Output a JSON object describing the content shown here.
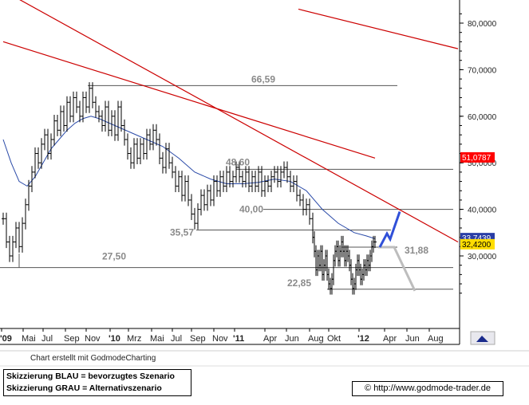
{
  "chart_data": {
    "type": "candlestick",
    "price_axis_labels": [
      "80,0000",
      "70,0000",
      "60,0000",
      "50,0000",
      "40,0000",
      "30,0000"
    ],
    "time_axis_labels": [
      "'09",
      "Mai",
      "Jul",
      "Sep",
      "Nov",
      "'10",
      "Mrz",
      "Mai",
      "Jul",
      "Sep",
      "Nov",
      "'11",
      "Apr",
      "Jun",
      "Aug",
      "Okt",
      "'12",
      "Apr",
      "Jun",
      "Aug"
    ],
    "price_badges": [
      {
        "label": "51,0787",
        "color": "#ff0000",
        "text_color": "#ffffff"
      },
      {
        "label": "33,7439",
        "color": "#2a3ea6",
        "text_color": "#ffffff"
      },
      {
        "label": "32,4200",
        "color": "#ffdd00",
        "text_color": "#000000"
      }
    ],
    "levels": [
      {
        "value": 66.59,
        "label": "66,59"
      },
      {
        "value": 48.6,
        "label": "48,60"
      },
      {
        "value": 40.0,
        "label": "40,00"
      },
      {
        "value": 35.57,
        "label": "35,57"
      },
      {
        "value": 31.88,
        "label": "31,88"
      },
      {
        "value": 27.5,
        "label": "27,50"
      },
      {
        "value": 22.85,
        "label": "22,85"
      }
    ],
    "price_path": [
      [
        0,
        38
      ],
      [
        4,
        33
      ],
      [
        8,
        30
      ],
      [
        12,
        33
      ],
      [
        16,
        36
      ],
      [
        20,
        32
      ],
      [
        24,
        37
      ],
      [
        28,
        41
      ],
      [
        32,
        45
      ],
      [
        36,
        48
      ],
      [
        40,
        52
      ],
      [
        44,
        50
      ],
      [
        48,
        54
      ],
      [
        52,
        56
      ],
      [
        56,
        52
      ],
      [
        60,
        55
      ],
      [
        64,
        59
      ],
      [
        68,
        57
      ],
      [
        72,
        61
      ],
      [
        76,
        58
      ],
      [
        80,
        63
      ],
      [
        84,
        60
      ],
      [
        88,
        64
      ],
      [
        92,
        62
      ],
      [
        96,
        60
      ],
      [
        100,
        64
      ],
      [
        104,
        62
      ],
      [
        108,
        66
      ],
      [
        112,
        63
      ],
      [
        116,
        61
      ],
      [
        120,
        60
      ],
      [
        124,
        58
      ],
      [
        128,
        62
      ],
      [
        132,
        57
      ],
      [
        136,
        60
      ],
      [
        140,
        56
      ],
      [
        144,
        62
      ],
      [
        148,
        58
      ],
      [
        152,
        55
      ],
      [
        156,
        52
      ],
      [
        160,
        50
      ],
      [
        164,
        54
      ],
      [
        168,
        51
      ],
      [
        172,
        54
      ],
      [
        176,
        52
      ],
      [
        180,
        56
      ],
      [
        184,
        54
      ],
      [
        188,
        57
      ],
      [
        192,
        55
      ],
      [
        196,
        51
      ],
      [
        200,
        49
      ],
      [
        204,
        53
      ],
      [
        208,
        50
      ],
      [
        212,
        48
      ],
      [
        216,
        45
      ],
      [
        220,
        47
      ],
      [
        224,
        43
      ],
      [
        228,
        46
      ],
      [
        232,
        42
      ],
      [
        236,
        39
      ],
      [
        240,
        37
      ],
      [
        244,
        40
      ],
      [
        248,
        43
      ],
      [
        252,
        41
      ],
      [
        256,
        44
      ],
      [
        260,
        42
      ],
      [
        264,
        46
      ],
      [
        268,
        44
      ],
      [
        272,
        47
      ],
      [
        276,
        45
      ],
      [
        280,
        48
      ],
      [
        284,
        46
      ],
      [
        288,
        47
      ],
      [
        292,
        49
      ],
      [
        296,
        47
      ],
      [
        300,
        46
      ],
      [
        304,
        48
      ],
      [
        308,
        45
      ],
      [
        312,
        47
      ],
      [
        316,
        45
      ],
      [
        320,
        48
      ],
      [
        324,
        44
      ],
      [
        328,
        46
      ],
      [
        332,
        45
      ],
      [
        336,
        47
      ],
      [
        340,
        48
      ],
      [
        344,
        46
      ],
      [
        348,
        48
      ],
      [
        352,
        49
      ],
      [
        356,
        47
      ],
      [
        360,
        45
      ],
      [
        364,
        46
      ],
      [
        368,
        43
      ],
      [
        372,
        42
      ],
      [
        376,
        40
      ],
      [
        380,
        41
      ],
      [
        384,
        38
      ],
      [
        388,
        34
      ],
      [
        390,
        31
      ],
      [
        392,
        27
      ],
      [
        394,
        30
      ],
      [
        396,
        28
      ],
      [
        398,
        31
      ],
      [
        400,
        26
      ],
      [
        402,
        28
      ],
      [
        404,
        30
      ],
      [
        406,
        26
      ],
      [
        408,
        24
      ],
      [
        410,
        23
      ],
      [
        412,
        25
      ],
      [
        414,
        29
      ],
      [
        416,
        31
      ],
      [
        418,
        32
      ],
      [
        420,
        29
      ],
      [
        422,
        31
      ],
      [
        424,
        33
      ],
      [
        426,
        31
      ],
      [
        428,
        29
      ],
      [
        430,
        31
      ],
      [
        432,
        30
      ],
      [
        434,
        28
      ],
      [
        436,
        25
      ],
      [
        438,
        23
      ],
      [
        440,
        24
      ],
      [
        442,
        27
      ],
      [
        444,
        29
      ],
      [
        446,
        27
      ],
      [
        448,
        25
      ],
      [
        450,
        26
      ],
      [
        452,
        28
      ],
      [
        454,
        27
      ],
      [
        456,
        29
      ],
      [
        458,
        28
      ],
      [
        460,
        30
      ],
      [
        462,
        32
      ],
      [
        464,
        33
      ],
      [
        466,
        33
      ]
    ],
    "ma_line": [
      [
        0,
        55
      ],
      [
        10,
        50
      ],
      [
        20,
        46
      ],
      [
        30,
        45
      ],
      [
        40,
        47
      ],
      [
        50,
        50
      ],
      [
        60,
        53
      ],
      [
        70,
        55
      ],
      [
        80,
        57
      ],
      [
        90,
        58.5
      ],
      [
        100,
        59.5
      ],
      [
        110,
        60
      ],
      [
        120,
        59.5
      ],
      [
        140,
        58
      ],
      [
        160,
        56.5
      ],
      [
        180,
        55
      ],
      [
        200,
        53.5
      ],
      [
        220,
        51
      ],
      [
        240,
        48
      ],
      [
        260,
        46.5
      ],
      [
        280,
        45.5
      ],
      [
        300,
        45.5
      ],
      [
        320,
        45.8
      ],
      [
        340,
        46.5
      ],
      [
        360,
        46
      ],
      [
        380,
        44
      ],
      [
        400,
        40
      ],
      [
        420,
        37
      ],
      [
        440,
        35
      ],
      [
        455,
        34.3
      ],
      [
        466,
        33.7
      ]
    ],
    "trend_lines": [
      {
        "color": "#cc0000",
        "from": [
          0,
          87
        ],
        "to": [
          570,
          33
        ]
      },
      {
        "color": "#cc0000",
        "from": [
          0,
          76
        ],
        "to": [
          466,
          51
        ]
      },
      {
        "color": "#cc0000",
        "from": [
          370,
          83
        ],
        "to": [
          570,
          74.5
        ]
      }
    ],
    "scenario_blue": [
      [
        472,
        31.88
      ],
      [
        481,
        34.8
      ],
      [
        485,
        33.6
      ],
      [
        497,
        39.5
      ]
    ],
    "scenario_gray": [
      [
        470,
        31.88
      ],
      [
        490,
        31.88
      ],
      [
        516,
        22.5
      ]
    ]
  },
  "credit": "Chart erstellt mit GodmodeCharting",
  "legend": {
    "blue_line": "Skizzierung BLAU = bevorzugtes Szenario",
    "gray_line": "Skizzierung GRAU = Alternativszenario"
  },
  "url": "© http://www.godmode-trader.de"
}
